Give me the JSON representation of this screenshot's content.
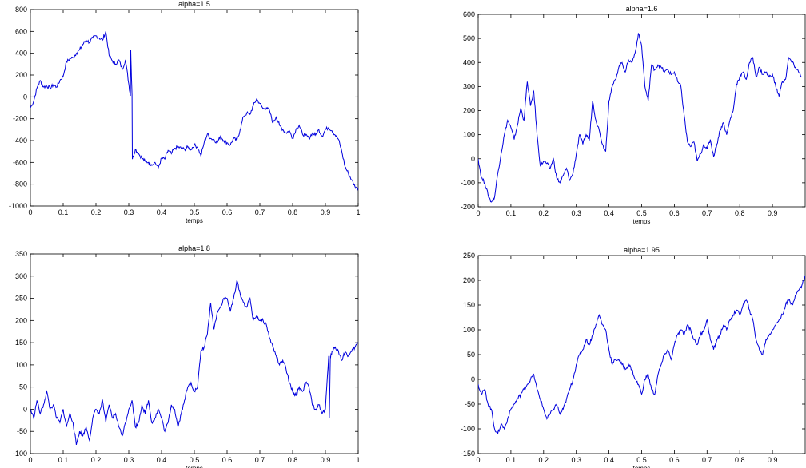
{
  "figure": {
    "background": "#ffffff",
    "line_color": "#0000dd"
  },
  "chart_data": [
    {
      "type": "line",
      "title": "alpha=1.5",
      "xlabel": "temps",
      "ylabel": "",
      "xlim": [
        0,
        1
      ],
      "ylim": [
        -1000,
        800
      ],
      "xticks": [
        0,
        0.1,
        0.2,
        0.3,
        0.4,
        0.5,
        0.6,
        0.7,
        0.8,
        0.9,
        1
      ],
      "xtick_labels": [
        "0",
        "0.1",
        "0.2",
        "0.3",
        "0.4",
        "0.5",
        "0.6",
        "0.7",
        "0.8",
        "0.9",
        "1"
      ],
      "yticks": [
        -1000,
        -800,
        -600,
        -400,
        -200,
        0,
        200,
        400,
        600,
        800
      ],
      "ytick_labels": [
        "-1000",
        "-800",
        "-600",
        "-400",
        "-200",
        "0",
        "200",
        "400",
        "600",
        "800"
      ],
      "grid": false,
      "series": [
        {
          "x": [
            0,
            0.01,
            0.02,
            0.03,
            0.04,
            0.05,
            0.06,
            0.07,
            0.08,
            0.09,
            0.1,
            0.11,
            0.12,
            0.13,
            0.14,
            0.15,
            0.16,
            0.17,
            0.18,
            0.19,
            0.2,
            0.21,
            0.22,
            0.23,
            0.24,
            0.25,
            0.26,
            0.27,
            0.28,
            0.29,
            0.3,
            0.305,
            0.306,
            0.31,
            0.311,
            0.32,
            0.33,
            0.34,
            0.35,
            0.36,
            0.37,
            0.38,
            0.39,
            0.4,
            0.41,
            0.42,
            0.43,
            0.44,
            0.45,
            0.46,
            0.47,
            0.48,
            0.49,
            0.5,
            0.51,
            0.52,
            0.53,
            0.54,
            0.55,
            0.56,
            0.57,
            0.58,
            0.59,
            0.6,
            0.61,
            0.62,
            0.63,
            0.64,
            0.65,
            0.66,
            0.67,
            0.68,
            0.69,
            0.7,
            0.71,
            0.72,
            0.73,
            0.74,
            0.75,
            0.76,
            0.77,
            0.78,
            0.79,
            0.8,
            0.81,
            0.82,
            0.83,
            0.84,
            0.85,
            0.86,
            0.87,
            0.88,
            0.89,
            0.9,
            0.91,
            0.92,
            0.93,
            0.94,
            0.95,
            0.96,
            0.97,
            0.98,
            0.99,
            1.0
          ],
          "y": [
            -100,
            -40,
            80,
            150,
            90,
            100,
            80,
            110,
            90,
            150,
            190,
            320,
            350,
            360,
            400,
            430,
            480,
            520,
            500,
            540,
            560,
            540,
            520,
            600,
            380,
            330,
            300,
            340,
            250,
            340,
            120,
            10,
            430,
            20,
            -570,
            -480,
            -520,
            -560,
            -590,
            -600,
            -620,
            -600,
            -650,
            -560,
            -570,
            -490,
            -520,
            -470,
            -460,
            -470,
            -480,
            -460,
            -480,
            -440,
            -460,
            -540,
            -420,
            -340,
            -380,
            -390,
            -420,
            -360,
            -400,
            -420,
            -440,
            -380,
            -400,
            -300,
            -180,
            -150,
            -160,
            -80,
            -20,
            -60,
            -110,
            -100,
            -130,
            -240,
            -180,
            -260,
            -300,
            -330,
            -310,
            -380,
            -300,
            -260,
            -340,
            -350,
            -380,
            -330,
            -350,
            -300,
            -360,
            -300,
            -280,
            -310,
            -350,
            -390,
            -500,
            -640,
            -700,
            -760,
            -820,
            -840
          ]
        }
      ]
    },
    {
      "type": "line",
      "title": "alpha=1.6",
      "xlabel": "temps",
      "ylabel": "",
      "xlim": [
        0,
        1
      ],
      "ylim": [
        -200,
        600
      ],
      "xticks": [
        0,
        0.1,
        0.2,
        0.3,
        0.4,
        0.5,
        0.6,
        0.7,
        0.8,
        0.9
      ],
      "xtick_labels": [
        "0",
        "0.1",
        "0.2",
        "0.3",
        "0.4",
        "0.5",
        "0.6",
        "0.7",
        "0.8",
        "0.9"
      ],
      "yticks": [
        -200,
        -100,
        0,
        100,
        200,
        300,
        400,
        500,
        600
      ],
      "ytick_labels": [
        "-200",
        "-100",
        "0",
        "100",
        "200",
        "300",
        "400",
        "500",
        "600"
      ],
      "grid": false,
      "series": [
        {
          "x": [
            0,
            0.01,
            0.02,
            0.03,
            0.04,
            0.05,
            0.06,
            0.07,
            0.08,
            0.09,
            0.1,
            0.11,
            0.12,
            0.13,
            0.14,
            0.15,
            0.16,
            0.17,
            0.18,
            0.19,
            0.2,
            0.21,
            0.22,
            0.23,
            0.24,
            0.25,
            0.26,
            0.27,
            0.28,
            0.29,
            0.3,
            0.31,
            0.32,
            0.33,
            0.34,
            0.35,
            0.36,
            0.37,
            0.38,
            0.39,
            0.4,
            0.41,
            0.42,
            0.43,
            0.44,
            0.45,
            0.46,
            0.47,
            0.48,
            0.49,
            0.5,
            0.51,
            0.52,
            0.53,
            0.54,
            0.55,
            0.56,
            0.57,
            0.58,
            0.59,
            0.6,
            0.61,
            0.62,
            0.63,
            0.64,
            0.65,
            0.66,
            0.67,
            0.68,
            0.69,
            0.7,
            0.71,
            0.72,
            0.73,
            0.74,
            0.75,
            0.76,
            0.77,
            0.78,
            0.79,
            0.8,
            0.81,
            0.82,
            0.83,
            0.84,
            0.85,
            0.86,
            0.87,
            0.88,
            0.89,
            0.9,
            0.91,
            0.92,
            0.93,
            0.94,
            0.95,
            0.96,
            0.97,
            0.98,
            0.99
          ],
          "y": [
            0,
            -80,
            -100,
            -150,
            -180,
            -160,
            -60,
            20,
            100,
            160,
            130,
            80,
            140,
            210,
            160,
            320,
            220,
            280,
            100,
            -30,
            -10,
            -20,
            -40,
            0,
            -80,
            -100,
            -70,
            -40,
            -90,
            -60,
            20,
            100,
            60,
            100,
            80,
            240,
            160,
            120,
            60,
            30,
            240,
            300,
            330,
            380,
            400,
            360,
            410,
            400,
            440,
            520,
            470,
            300,
            240,
            390,
            370,
            390,
            380,
            360,
            370,
            350,
            360,
            320,
            300,
            180,
            70,
            50,
            70,
            -10,
            20,
            60,
            40,
            80,
            10,
            60,
            120,
            150,
            100,
            160,
            200,
            310,
            340,
            360,
            330,
            400,
            420,
            340,
            380,
            350,
            360,
            340,
            350,
            300,
            260,
            320,
            330,
            420,
            400,
            380,
            360,
            340
          ]
        }
      ]
    },
    {
      "type": "line",
      "title": "alpha=1.8",
      "xlabel": "temps",
      "ylabel": "",
      "xlim": [
        0,
        1
      ],
      "ylim": [
        -100,
        350
      ],
      "xticks": [
        0,
        0.1,
        0.2,
        0.3,
        0.4,
        0.5,
        0.6,
        0.7,
        0.8,
        0.9,
        1
      ],
      "xtick_labels": [
        "0",
        "0.1",
        "0.2",
        "0.3",
        "0.4",
        "0.5",
        "0.6",
        "0.7",
        "0.8",
        "0.9",
        "1"
      ],
      "yticks": [
        -100,
        -50,
        0,
        50,
        100,
        150,
        200,
        250,
        300,
        350
      ],
      "ytick_labels": [
        "-100",
        "-50",
        "0",
        "50",
        "100",
        "150",
        "200",
        "250",
        "300",
        "350"
      ],
      "grid": false,
      "series": [
        {
          "x": [
            0,
            0.01,
            0.02,
            0.03,
            0.04,
            0.05,
            0.06,
            0.07,
            0.08,
            0.09,
            0.1,
            0.11,
            0.12,
            0.13,
            0.14,
            0.15,
            0.16,
            0.17,
            0.18,
            0.19,
            0.2,
            0.21,
            0.22,
            0.23,
            0.24,
            0.25,
            0.26,
            0.27,
            0.28,
            0.29,
            0.3,
            0.31,
            0.32,
            0.33,
            0.34,
            0.35,
            0.36,
            0.37,
            0.38,
            0.39,
            0.4,
            0.41,
            0.42,
            0.43,
            0.44,
            0.45,
            0.46,
            0.47,
            0.48,
            0.49,
            0.5,
            0.51,
            0.52,
            0.53,
            0.54,
            0.55,
            0.56,
            0.57,
            0.58,
            0.59,
            0.6,
            0.61,
            0.62,
            0.63,
            0.64,
            0.65,
            0.66,
            0.67,
            0.68,
            0.69,
            0.7,
            0.71,
            0.72,
            0.73,
            0.74,
            0.75,
            0.76,
            0.77,
            0.78,
            0.79,
            0.8,
            0.81,
            0.82,
            0.83,
            0.84,
            0.85,
            0.86,
            0.87,
            0.88,
            0.89,
            0.9,
            0.91,
            0.912,
            0.915,
            0.92,
            0.93,
            0.94,
            0.95,
            0.96,
            0.97,
            0.98,
            0.99,
            1.0
          ],
          "y": [
            0,
            -20,
            20,
            -10,
            10,
            40,
            0,
            10,
            -20,
            -30,
            0,
            -40,
            -10,
            -30,
            -80,
            -50,
            -60,
            -40,
            -70,
            -20,
            0,
            -10,
            20,
            -30,
            10,
            -20,
            -10,
            -40,
            -60,
            -30,
            0,
            20,
            -40,
            -30,
            10,
            -10,
            20,
            -30,
            -20,
            0,
            -20,
            -50,
            -30,
            10,
            0,
            -40,
            -10,
            20,
            50,
            60,
            40,
            50,
            130,
            140,
            170,
            240,
            180,
            220,
            230,
            250,
            250,
            220,
            250,
            290,
            260,
            240,
            230,
            250,
            200,
            210,
            200,
            200,
            190,
            160,
            140,
            120,
            100,
            110,
            90,
            60,
            40,
            30,
            50,
            40,
            60,
            50,
            10,
            0,
            10,
            -10,
            0,
            120,
            -20,
            120,
            130,
            140,
            130,
            110,
            130,
            120,
            130,
            140,
            150
          ]
        }
      ]
    },
    {
      "type": "line",
      "title": "alpha=1.95",
      "xlabel": "temps",
      "ylabel": "",
      "xlim": [
        0,
        1
      ],
      "ylim": [
        -150,
        250
      ],
      "xticks": [
        0,
        0.1,
        0.2,
        0.3,
        0.4,
        0.5,
        0.6,
        0.7,
        0.8,
        0.9
      ],
      "xtick_labels": [
        "0",
        "0.1",
        "0.2",
        "0.3",
        "0.4",
        "0.5",
        "0.6",
        "0.7",
        "0.8",
        "0.9"
      ],
      "yticks": [
        -150,
        -100,
        -50,
        0,
        50,
        100,
        150,
        200,
        250
      ],
      "ytick_labels": [
        "-150",
        "-100",
        "-50",
        "0",
        "50",
        "100",
        "150",
        "200",
        "250"
      ],
      "grid": false,
      "series": [
        {
          "x": [
            0,
            0.01,
            0.02,
            0.03,
            0.04,
            0.05,
            0.06,
            0.07,
            0.08,
            0.09,
            0.1,
            0.11,
            0.12,
            0.13,
            0.14,
            0.15,
            0.16,
            0.17,
            0.18,
            0.19,
            0.2,
            0.21,
            0.22,
            0.23,
            0.24,
            0.25,
            0.26,
            0.27,
            0.28,
            0.29,
            0.3,
            0.31,
            0.32,
            0.33,
            0.34,
            0.35,
            0.36,
            0.37,
            0.38,
            0.39,
            0.4,
            0.41,
            0.42,
            0.43,
            0.44,
            0.45,
            0.46,
            0.47,
            0.48,
            0.49,
            0.5,
            0.51,
            0.52,
            0.53,
            0.54,
            0.55,
            0.56,
            0.57,
            0.58,
            0.59,
            0.6,
            0.61,
            0.62,
            0.63,
            0.64,
            0.65,
            0.66,
            0.67,
            0.68,
            0.69,
            0.7,
            0.71,
            0.72,
            0.73,
            0.74,
            0.75,
            0.76,
            0.77,
            0.78,
            0.79,
            0.8,
            0.81,
            0.82,
            0.83,
            0.84,
            0.85,
            0.86,
            0.87,
            0.88,
            0.89,
            0.9,
            0.91,
            0.92,
            0.93,
            0.94,
            0.95,
            0.96,
            0.97,
            0.98,
            0.99,
            1.0
          ],
          "y": [
            -10,
            -30,
            -20,
            -50,
            -60,
            -100,
            -110,
            -90,
            -100,
            -80,
            -60,
            -50,
            -40,
            -30,
            -20,
            -10,
            0,
            10,
            -20,
            -40,
            -60,
            -80,
            -70,
            -60,
            -50,
            -70,
            -60,
            -40,
            -20,
            0,
            30,
            50,
            60,
            80,
            70,
            90,
            110,
            130,
            110,
            100,
            60,
            30,
            40,
            40,
            30,
            20,
            30,
            20,
            0,
            -10,
            -30,
            0,
            10,
            -20,
            -30,
            10,
            30,
            50,
            60,
            40,
            70,
            90,
            100,
            90,
            110,
            100,
            80,
            70,
            90,
            100,
            120,
            80,
            60,
            80,
            90,
            110,
            100,
            120,
            130,
            140,
            130,
            150,
            160,
            140,
            120,
            80,
            60,
            50,
            80,
            90,
            100,
            110,
            120,
            130,
            150,
            160,
            150,
            170,
            180,
            190,
            210
          ]
        }
      ]
    }
  ]
}
